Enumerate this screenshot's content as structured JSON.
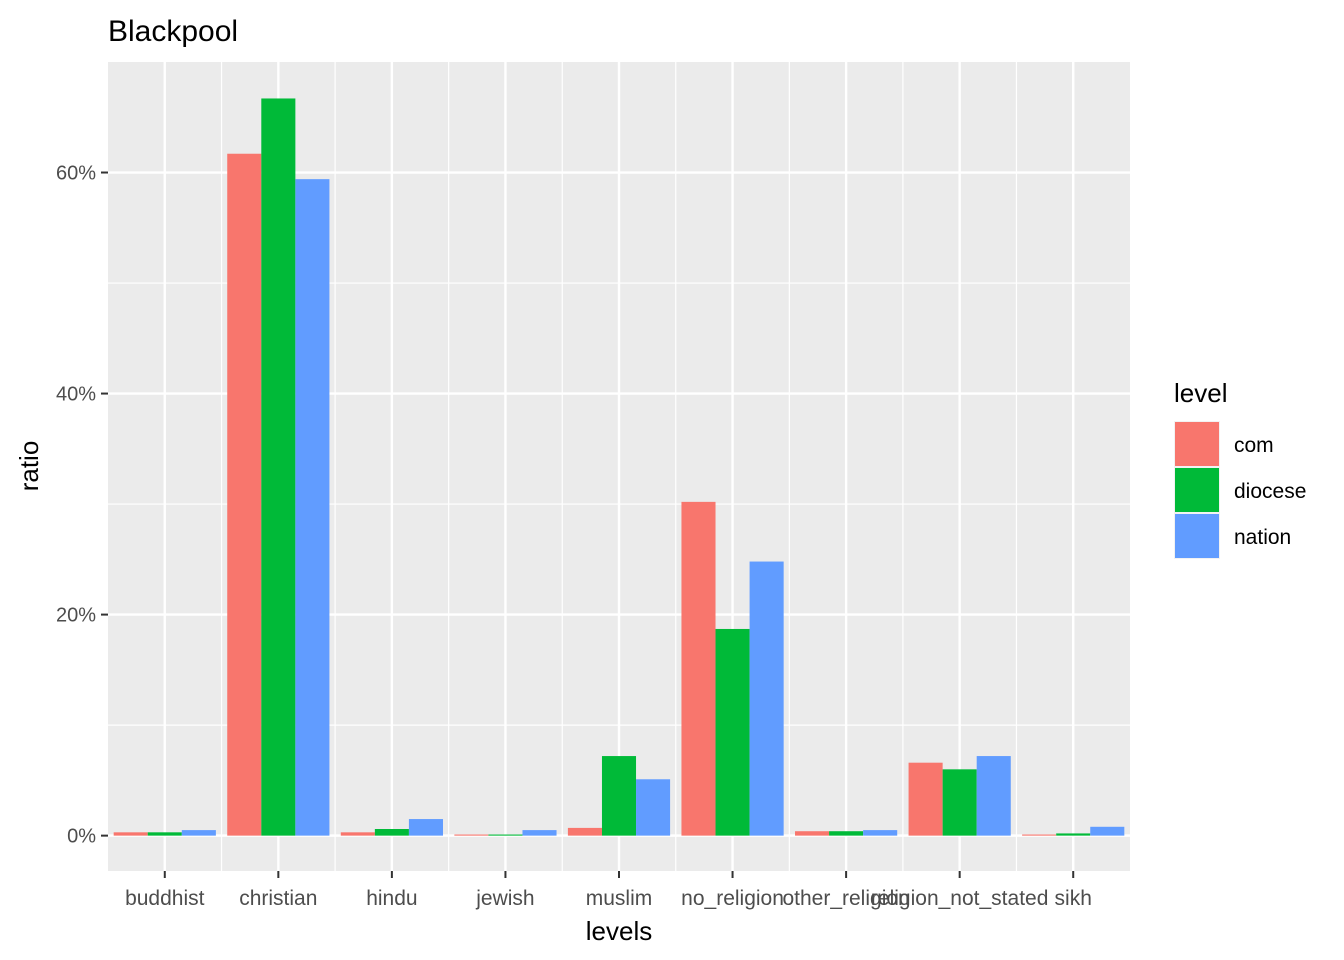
{
  "chart_data": {
    "type": "bar",
    "title": "Blackpool",
    "xlabel": "levels",
    "ylabel": "ratio",
    "categories": [
      "buddhist",
      "christian",
      "hindu",
      "jewish",
      "muslim",
      "no_religion",
      "other_religion",
      "religion_not_stated",
      "sikh"
    ],
    "series": [
      {
        "name": "com",
        "color": "#F8766D",
        "values": [
          0.003,
          0.617,
          0.003,
          0.001,
          0.007,
          0.302,
          0.004,
          0.066,
          0.001
        ]
      },
      {
        "name": "diocese",
        "color": "#00BA38",
        "values": [
          0.003,
          0.667,
          0.006,
          0.001,
          0.072,
          0.187,
          0.004,
          0.06,
          0.002
        ]
      },
      {
        "name": "nation",
        "color": "#619CFF",
        "values": [
          0.005,
          0.594,
          0.015,
          0.005,
          0.051,
          0.248,
          0.005,
          0.072,
          0.008
        ]
      }
    ],
    "ylim": [
      -0.032,
      0.7
    ],
    "yticks": [
      0,
      0.2,
      0.4,
      0.6
    ],
    "ytick_labels": [
      "0%",
      "20%",
      "40%",
      "60%"
    ],
    "legend": {
      "title": "level",
      "position": "right"
    },
    "grid": true
  }
}
